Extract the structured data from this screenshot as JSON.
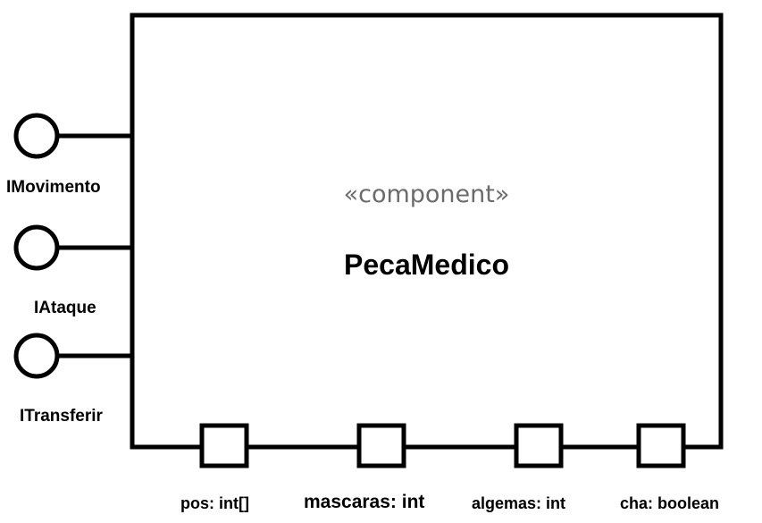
{
  "component": {
    "stereotype": "«component»",
    "name": "PecaMedico"
  },
  "provided_interfaces": [
    {
      "label": "IMovimento",
      "icon": "lollipop-interface-icon"
    },
    {
      "label": "IAtaque",
      "icon": "lollipop-interface-icon"
    },
    {
      "label": "ITransferir",
      "icon": "lollipop-interface-icon"
    }
  ],
  "ports": [
    {
      "label": "pos: int[]",
      "icon": "port-icon"
    },
    {
      "label": "mascaras: int",
      "icon": "port-icon"
    },
    {
      "label": "algemas: int",
      "icon": "port-icon"
    },
    {
      "label": "cha: boolean",
      "icon": "port-icon"
    }
  ],
  "colors": {
    "stroke": "#000000",
    "stereotype_text": "#6b6b6b",
    "background": "#ffffff"
  }
}
